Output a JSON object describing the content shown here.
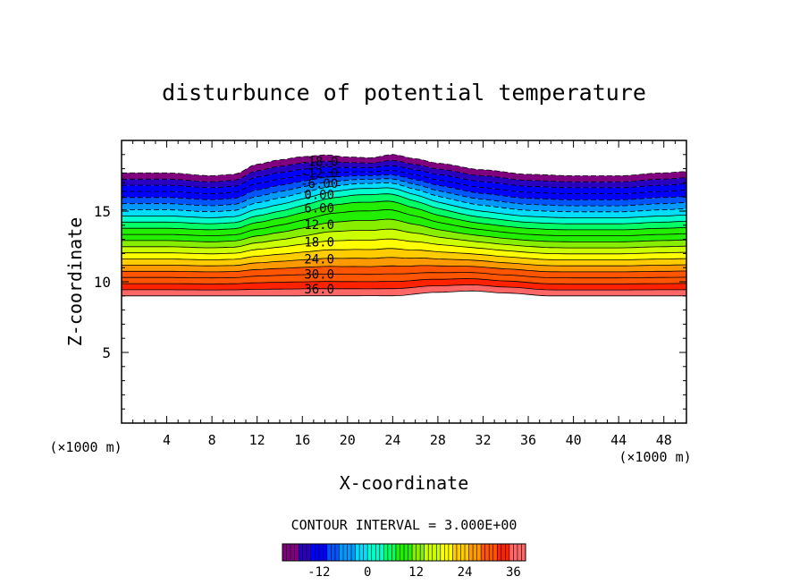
{
  "chart_data": {
    "type": "heatmap",
    "title": "disturbunce of potential temperature",
    "xlabel": "X-coordinate",
    "ylabel": "Z-coordinate",
    "x_unit": "(×1000 m)",
    "y_unit": "(×1000 m)",
    "xlim": [
      0,
      50
    ],
    "ylim": [
      0,
      20
    ],
    "x_ticks": [
      "4",
      "8",
      "12",
      "16",
      "20",
      "24",
      "28",
      "32",
      "36",
      "40",
      "44",
      "48"
    ],
    "y_ticks": [
      "5",
      "10",
      "15"
    ],
    "contour_interval_label": "CONTOUR INTERVAL = 3.000E+00",
    "contour_interval": 3.0,
    "contour_labels": [
      "-18.0",
      "-12.0",
      "-6.00",
      "0.00",
      "6.00",
      "12.0",
      "18.0",
      "24.0",
      "30.0",
      "36.0"
    ],
    "colorbar_ticks": [
      "-12",
      "0",
      "12",
      "24",
      "36"
    ],
    "colorbar_range": [
      -21,
      39
    ],
    "field_extent": {
      "z_bottom": 9.0,
      "top_profile": [
        {
          "x": 0,
          "z": 17.7
        },
        {
          "x": 4,
          "z": 17.7
        },
        {
          "x": 8,
          "z": 17.5
        },
        {
          "x": 10,
          "z": 17.6
        },
        {
          "x": 12,
          "z": 18.3
        },
        {
          "x": 14,
          "z": 18.6
        },
        {
          "x": 16,
          "z": 18.8
        },
        {
          "x": 18,
          "z": 18.9
        },
        {
          "x": 20,
          "z": 18.7
        },
        {
          "x": 22,
          "z": 18.6
        },
        {
          "x": 24,
          "z": 18.9
        },
        {
          "x": 26,
          "z": 18.6
        },
        {
          "x": 28,
          "z": 18.3
        },
        {
          "x": 32,
          "z": 17.9
        },
        {
          "x": 36,
          "z": 17.6
        },
        {
          "x": 40,
          "z": 17.5
        },
        {
          "x": 44,
          "z": 17.5
        },
        {
          "x": 48,
          "z": 17.7
        },
        {
          "x": 50,
          "z": 17.8
        }
      ],
      "bottom_bump": [
        {
          "x": 0,
          "dz": 0
        },
        {
          "x": 24,
          "dz": 0
        },
        {
          "x": 28,
          "dz": 0.25
        },
        {
          "x": 31,
          "dz": 0.35
        },
        {
          "x": 34,
          "dz": 0.2
        },
        {
          "x": 38,
          "dz": 0
        },
        {
          "x": 50,
          "dz": 0
        }
      ],
      "warm_anomaly": {
        "x_center": 22,
        "x_width": 6,
        "z_center": 14.8,
        "amplitude": 4
      }
    },
    "colors": {
      "palette": [
        "#800080",
        "#2a00c0",
        "#0000ff",
        "#0055ff",
        "#0099ff",
        "#00ddff",
        "#00ffcc",
        "#00ff66",
        "#22ee00",
        "#88ee00",
        "#ccff00",
        "#ffff00",
        "#ffcc00",
        "#ff9900",
        "#ff5500",
        "#ff2200",
        "#ff6666",
        "#ffdddd"
      ]
    }
  }
}
